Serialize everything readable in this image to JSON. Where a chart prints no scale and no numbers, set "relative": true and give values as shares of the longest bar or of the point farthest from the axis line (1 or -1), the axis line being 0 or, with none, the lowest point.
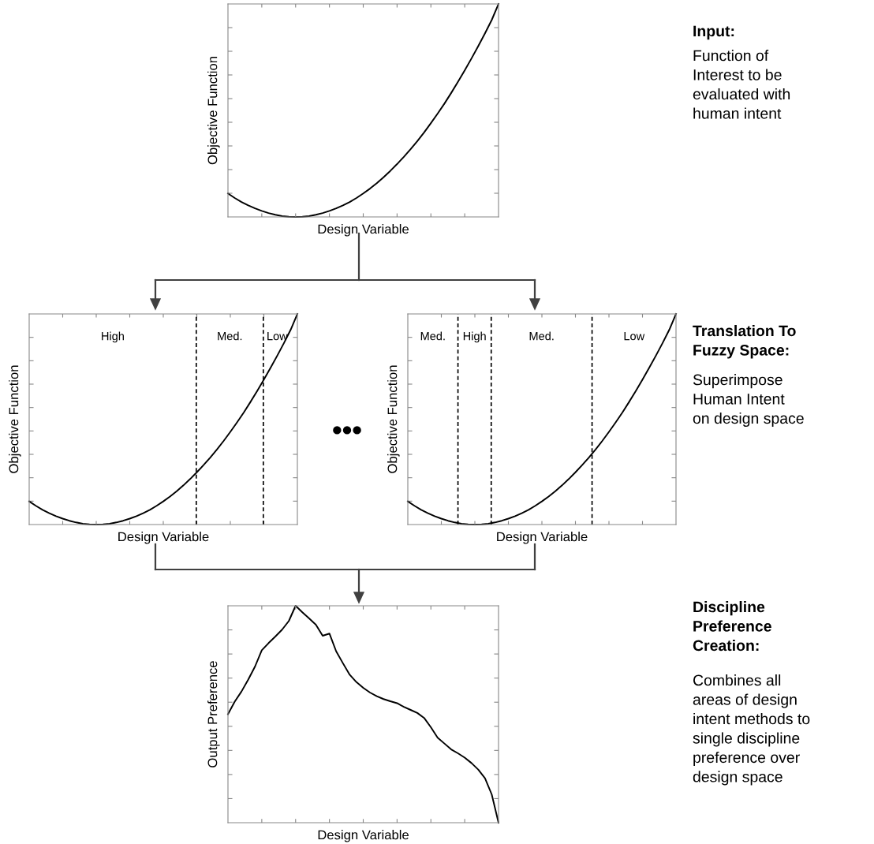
{
  "chart_data": [
    {
      "type": "line",
      "relative": true,
      "xlabel": "Design Variable",
      "ylabel": "Objective Function",
      "categories": [
        null,
        null,
        null,
        null,
        null,
        null,
        null,
        null,
        null,
        null,
        null,
        null,
        null,
        null,
        null,
        null,
        null,
        null,
        null,
        null,
        null,
        null,
        null,
        null,
        null,
        null,
        null,
        null,
        null,
        null,
        null,
        null,
        null,
        null,
        null,
        null,
        null,
        null,
        null,
        null,
        null
      ],
      "series": [
        {
          "color": "#000000",
          "values": [
            0.11,
            0.089,
            0.07,
            0.054,
            0.04,
            0.028,
            0.018,
            0.01,
            0.004,
            0.001,
            0,
            0.001,
            0.004,
            0.01,
            0.018,
            0.028,
            0.04,
            0.054,
            0.07,
            0.089,
            0.11,
            0.133,
            0.158,
            0.186,
            0.216,
            0.248,
            0.282,
            0.318,
            0.356,
            0.397,
            0.44,
            0.485,
            0.532,
            0.582,
            0.634,
            0.688,
            0.744,
            0.802,
            0.862,
            0.925,
            1.0
          ]
        }
      ],
      "annotations": [
        "Input:",
        "Function of\nInterest to be\nevaluated with\nhuman intent"
      ]
    },
    {
      "type": "line",
      "relative": true,
      "xlabel": "Design Variable",
      "ylabel": "Objective Function",
      "categories": [
        null,
        null,
        null,
        null,
        null,
        null,
        null,
        null,
        null,
        null,
        null,
        null,
        null,
        null,
        null,
        null,
        null,
        null,
        null,
        null,
        null,
        null,
        null,
        null,
        null,
        null,
        null,
        null,
        null,
        null,
        null,
        null,
        null,
        null,
        null,
        null,
        null,
        null,
        null,
        null,
        null
      ],
      "series": [
        {
          "color": "#000000",
          "values": [
            0.11,
            0.089,
            0.07,
            0.054,
            0.04,
            0.028,
            0.018,
            0.01,
            0.004,
            0.001,
            0,
            0.001,
            0.004,
            0.01,
            0.018,
            0.028,
            0.04,
            0.054,
            0.07,
            0.089,
            0.11,
            0.133,
            0.158,
            0.186,
            0.216,
            0.248,
            0.282,
            0.318,
            0.356,
            0.397,
            0.44,
            0.485,
            0.532,
            0.582,
            0.634,
            0.688,
            0.744,
            0.802,
            0.862,
            0.925,
            1.0
          ]
        }
      ],
      "annotations": [
        "High",
        "Med.",
        "Low",
        "•••"
      ]
    },
    {
      "type": "line",
      "relative": true,
      "xlabel": "Design Variable",
      "ylabel": "Objective Function",
      "categories": [
        null,
        null,
        null,
        null,
        null,
        null,
        null,
        null,
        null,
        null,
        null,
        null,
        null,
        null,
        null,
        null,
        null,
        null,
        null,
        null,
        null,
        null,
        null,
        null,
        null,
        null,
        null,
        null,
        null,
        null,
        null,
        null,
        null,
        null,
        null,
        null,
        null,
        null,
        null,
        null,
        null
      ],
      "series": [
        {
          "color": "#000000",
          "values": [
            0.11,
            0.089,
            0.07,
            0.054,
            0.04,
            0.028,
            0.018,
            0.01,
            0.004,
            0.001,
            0,
            0.001,
            0.004,
            0.01,
            0.018,
            0.028,
            0.04,
            0.054,
            0.07,
            0.089,
            0.11,
            0.133,
            0.158,
            0.186,
            0.216,
            0.248,
            0.282,
            0.318,
            0.356,
            0.397,
            0.44,
            0.485,
            0.532,
            0.582,
            0.634,
            0.688,
            0.744,
            0.802,
            0.862,
            0.925,
            1.0
          ]
        }
      ],
      "annotations": [
        "Med.",
        "High",
        "Med.",
        "Low",
        "Translation To\nFuzzy Space:",
        "Superimpose\nHuman Intent\non design space"
      ]
    },
    {
      "type": "line",
      "relative": true,
      "xlabel": "Design Variable",
      "ylabel": "Output Preference",
      "categories": [
        null,
        null,
        null,
        null,
        null,
        null,
        null,
        null,
        null,
        null,
        null,
        null,
        null,
        null,
        null,
        null,
        null,
        null,
        null,
        null,
        null,
        null,
        null,
        null,
        null,
        null,
        null,
        null,
        null,
        null,
        null,
        null,
        null,
        null,
        null,
        null,
        null,
        null,
        null,
        null,
        null
      ],
      "series": [
        {
          "color": "#000000",
          "values": [
            0.5,
            0.558,
            0.605,
            0.66,
            0.72,
            0.795,
            0.828,
            0.858,
            0.89,
            0.93,
            1.0,
            0.97,
            0.942,
            0.913,
            0.862,
            0.872,
            0.79,
            0.735,
            0.682,
            0.648,
            0.622,
            0.6,
            0.583,
            0.57,
            0.56,
            0.551,
            0.534,
            0.52,
            0.506,
            0.483,
            0.44,
            0.392,
            0.365,
            0.338,
            0.32,
            0.3,
            0.275,
            0.245,
            0.205,
            0.13,
            0.0
          ]
        }
      ],
      "annotations": [
        "Discipline\nPreference\nCreation:",
        "Combines all\nareas of design\nintent methods to\nsingle discipline\npreference over\ndesign space"
      ]
    }
  ]
}
